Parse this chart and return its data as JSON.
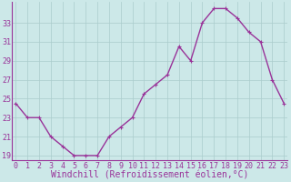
{
  "x": [
    0,
    1,
    2,
    3,
    4,
    5,
    6,
    7,
    8,
    9,
    10,
    11,
    12,
    13,
    14,
    15,
    16,
    17,
    18,
    19,
    20,
    21,
    22,
    23
  ],
  "y": [
    24.5,
    23.0,
    23.0,
    21.0,
    20.0,
    19.0,
    19.0,
    19.0,
    21.0,
    22.0,
    23.0,
    25.5,
    26.5,
    27.5,
    30.5,
    29.0,
    33.0,
    34.5,
    34.5,
    33.5,
    32.0,
    31.0,
    27.0,
    24.5
  ],
  "line_color": "#993399",
  "marker": "+",
  "marker_size": 3,
  "bg_color": "#cce8e8",
  "grid_color": "#aacccc",
  "xlabel": "Windchill (Refroidissement éolien,°C)",
  "ylim": [
    18.5,
    35.2
  ],
  "yticks": [
    19,
    21,
    23,
    25,
    27,
    29,
    31,
    33
  ],
  "xticks": [
    0,
    1,
    2,
    3,
    4,
    5,
    6,
    7,
    8,
    9,
    10,
    11,
    12,
    13,
    14,
    15,
    16,
    17,
    18,
    19,
    20,
    21,
    22,
    23
  ],
  "xlim": [
    -0.3,
    23.3
  ],
  "xlabel_fontsize": 7,
  "tick_fontsize": 6,
  "linewidth": 1.0,
  "marker_linewidth": 0.8
}
